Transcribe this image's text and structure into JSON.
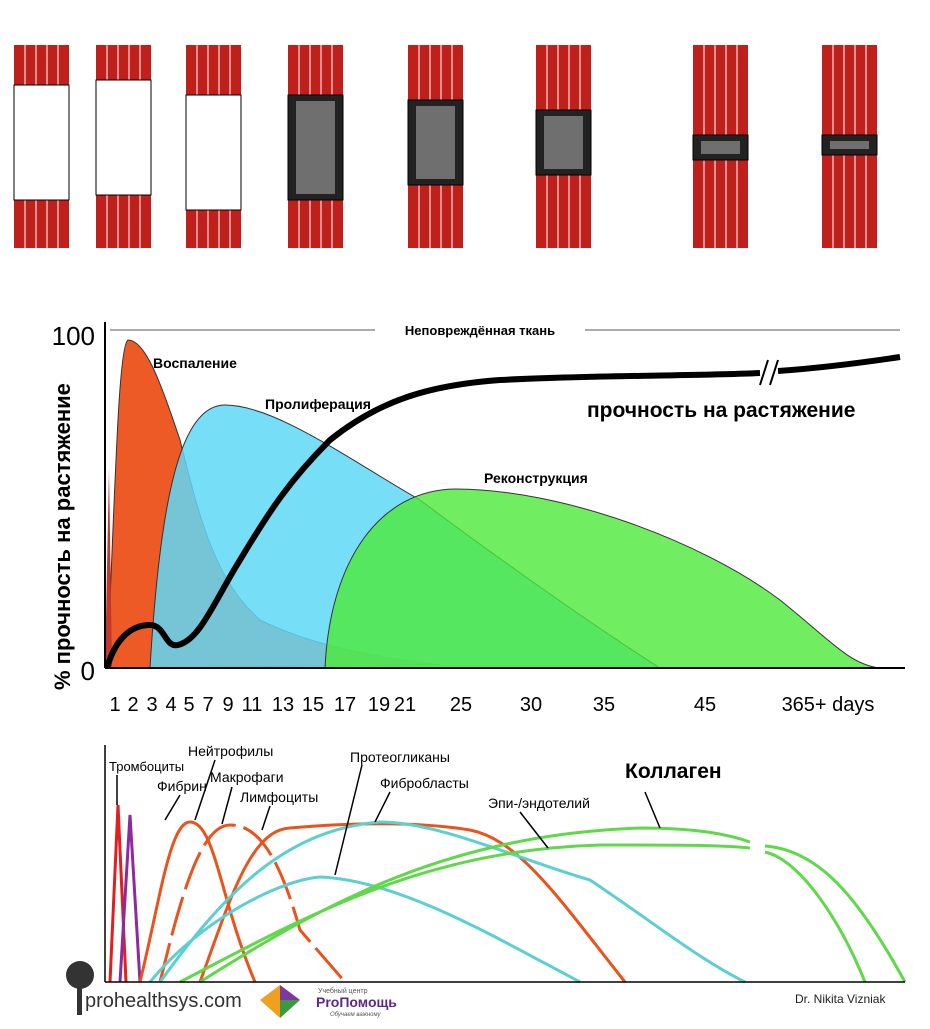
{
  "chart": {
    "y_axis_label": "% прочность на растяжение",
    "y_ticks": [
      "100",
      "0"
    ],
    "x_ticks": [
      "1",
      "2",
      "3",
      "4",
      "5",
      "7",
      "9",
      "11",
      "13",
      "15",
      "17",
      "19",
      "21",
      "25",
      "30",
      "35",
      "45",
      "365+ days"
    ],
    "top_label": "Неповреждённая ткань",
    "phases": [
      "Воспаление",
      "Пролиферация",
      "Реконструкция"
    ],
    "strength_label": "прочность на растяжение"
  },
  "cells": {
    "labels": [
      "Тромбоциты",
      "Фибрин",
      "Нейтрофилы",
      "Макрофаги",
      "Лимфоциты",
      "Протеогликаны",
      "Фибробласты",
      "Эпи-/эндотелий"
    ],
    "title": "Коллаген"
  },
  "footer": {
    "site": "prohealthsys.com",
    "logo_small": "Учебный центр",
    "logo_name": "ProПомощь",
    "logo_tagline": "Обучаем важному",
    "author": "Dr. Nikita Vizniak"
  }
}
